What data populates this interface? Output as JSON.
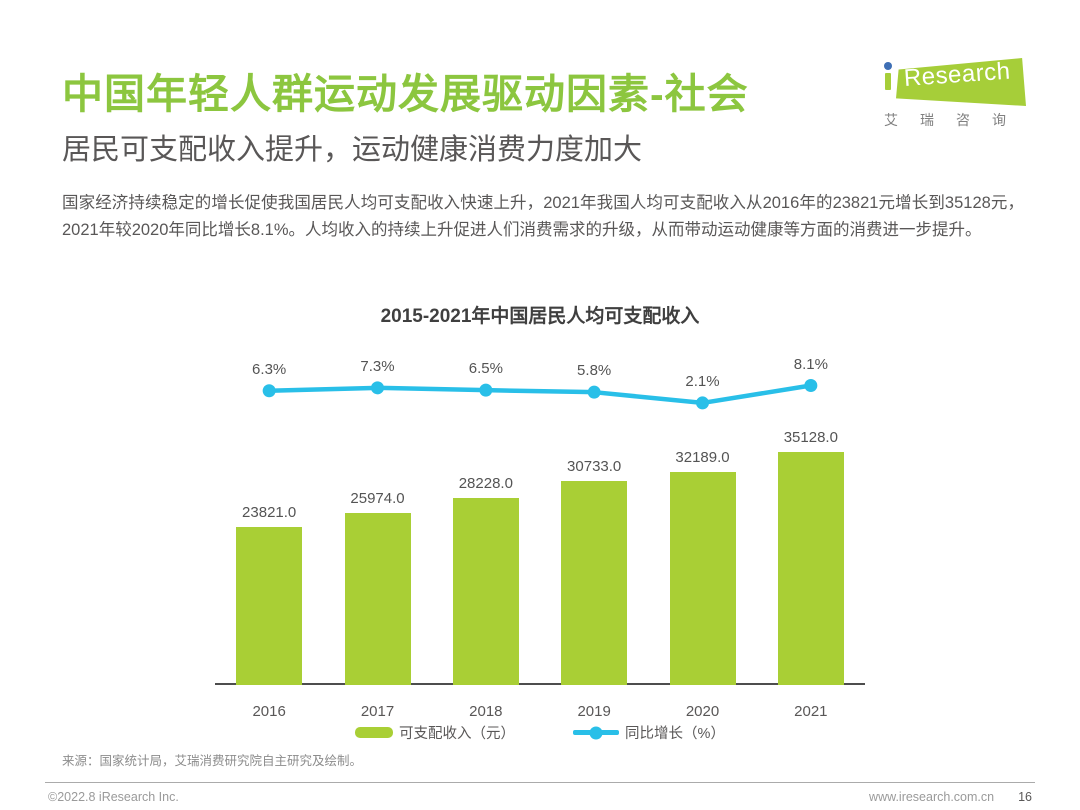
{
  "header": {
    "title": "中国年轻人群运动发展驱动因素-社会",
    "subtitle": "居民可支配收入提升，运动健康消费力度加大",
    "logo": {
      "brand_prefix": "i",
      "brand": "Research",
      "tagline": "艾瑞咨询"
    }
  },
  "body_text": "国家经济持续稳定的增长促使我国居民人均可支配收入快速上升，2021年我国人均可支配收入从2016年的23821元增长到35128元，2021年较2020年同比增长8.1%。人均收入的持续上升促进人们消费需求的升级，从而带动运动健康等方面的消费进一步提升。",
  "chart_data": {
    "type": "bar",
    "title": "2015-2021年中国居民人均可支配收入",
    "categories": [
      "2016",
      "2017",
      "2018",
      "2019",
      "2020",
      "2021"
    ],
    "series": [
      {
        "name": "可支配收入（元）",
        "type": "bar",
        "values": [
          23821.0,
          25974.0,
          28228.0,
          30733.0,
          32189.0,
          35128.0
        ],
        "labels": [
          "23821.0",
          "25974.0",
          "28228.0",
          "30733.0",
          "32189.0",
          "35128.0"
        ],
        "color": "#A9CF35"
      },
      {
        "name": "同比增长（%）",
        "type": "line",
        "values": [
          6.3,
          7.3,
          6.5,
          5.8,
          2.1,
          8.1
        ],
        "labels": [
          "6.3%",
          "7.3%",
          "6.5%",
          "5.8%",
          "2.1%",
          "8.1%"
        ],
        "color": "#29BFE8"
      }
    ],
    "xlabel": "",
    "ylabel": "",
    "grid": false,
    "legend_position": "bottom",
    "bar_axis_min": 0
  },
  "source_note": "来源：国家统计局，艾瑞消费研究院自主研究及绘制。",
  "footer": {
    "left": "©2022.8 iResearch Inc.",
    "right_url": "www.iresearch.com.cn",
    "page_number": "16"
  },
  "colors": {
    "accent_green": "#8CC63F",
    "bar_green": "#A9CF35",
    "line_blue": "#29BFE8",
    "logo_green": "#A6CE39",
    "logo_dot_blue": "#3E6FB5",
    "text_dark": "#595757",
    "muted_gray": "#8C8C8C"
  }
}
